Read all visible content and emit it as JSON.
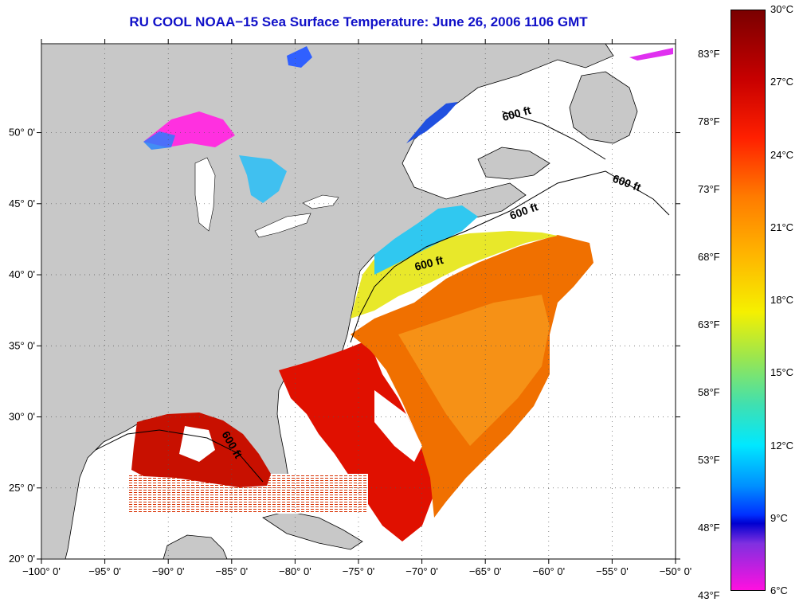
{
  "title": "RU COOL  NOAA−15  Sea Surface Temperature:  June 26, 2006 1106 GMT",
  "lon_ticks": [
    "−100° 0'",
    "−95° 0'",
    "−90° 0'",
    "−85° 0'",
    "−80° 0'",
    "−75° 0'",
    "−70° 0'",
    "−65° 0'",
    "−60° 0'",
    "−55° 0'",
    "−50° 0'"
  ],
  "lat_ticks": [
    "20° 0'",
    "25° 0'",
    "30° 0'",
    "35° 0'",
    "40° 0'",
    "45° 0'",
    "50° 0'"
  ],
  "contour_labels": [
    "600 ft",
    "600 ft",
    "600 ft",
    "600 ft",
    "600 ft"
  ],
  "colorbar": {
    "celsius": [
      "30°C",
      "27°C",
      "24°C",
      "21°C",
      "18°C",
      "15°C",
      "12°C",
      "9°C",
      "6°C"
    ],
    "fahrenheit": [
      "83°F",
      "78°F",
      "73°F",
      "68°F",
      "63°F",
      "58°F",
      "53°F",
      "48°F",
      "43°F"
    ]
  },
  "colors": {
    "land": "#c8c8c8",
    "no_data": "#ffffff",
    "title": "#1010c8"
  }
}
